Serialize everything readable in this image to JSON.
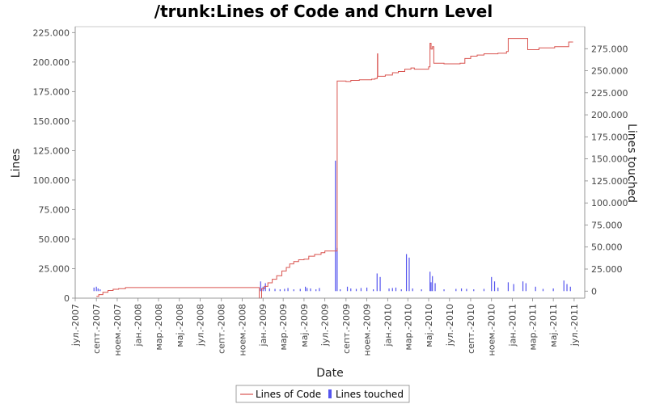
{
  "chart_data": {
    "type": "line",
    "title": "/trunk:Lines of Code and Churn Level",
    "xlabel": "Date",
    "ylabel": "Lines",
    "y2label": "Lines touched",
    "x_ticks": [
      "јул.-2007",
      "септ.-2007",
      "ноем.-2007",
      "јан.-2008",
      "мар.-2008",
      "мај.-2008",
      "јул.-2008",
      "септ.-2008",
      "ноем.-2008",
      "јан.-2009",
      "мар.-2009",
      "мај.-2009",
      "јул.-2009",
      "септ.-2009",
      "ноем.-2009",
      "јан.-2010",
      "мар.-2010",
      "мај.-2010",
      "јул.-2010",
      "септ.-2010",
      "ноем.-2010",
      "јан.-2011",
      "мар.-2011",
      "мај.-2011",
      "јул.-2011"
    ],
    "y_ticks": [
      "0",
      "25.000",
      "50.000",
      "75.000",
      "100.000",
      "125.000",
      "150.000",
      "175.000",
      "200.000",
      "225.000"
    ],
    "y2_ticks": [
      "0",
      "25.000",
      "50.000",
      "75.000",
      "100.000",
      "125.000",
      "150.000",
      "175.000",
      "200.000",
      "225.000",
      "250.000",
      "275.000"
    ],
    "ylim": [
      0,
      230000
    ],
    "y2lim": [
      -8000,
      300000
    ],
    "xlim": [
      "2007-07-01",
      "2011-08-01"
    ],
    "grid": false,
    "legend_position": "bottom",
    "colors": {
      "loc": "#d9534f",
      "churn": "#5555ee",
      "axis": "#888888"
    },
    "series": [
      {
        "name": "Lines of Code",
        "axis": "left",
        "style": "step",
        "points": [
          [
            "2007-09-01",
            1500
          ],
          [
            "2007-09-08",
            3000
          ],
          [
            "2007-09-20",
            5000
          ],
          [
            "2007-10-05",
            6500
          ],
          [
            "2007-10-20",
            7500
          ],
          [
            "2007-11-05",
            8000
          ],
          [
            "2007-11-25",
            9000
          ],
          [
            "2008-12-20",
            9000
          ],
          [
            "2008-12-21",
            0
          ],
          [
            "2008-12-28",
            8000
          ],
          [
            "2009-01-05",
            10000
          ],
          [
            "2009-01-15",
            13000
          ],
          [
            "2009-01-28",
            16000
          ],
          [
            "2009-02-10",
            19000
          ],
          [
            "2009-02-25",
            23000
          ],
          [
            "2009-03-10",
            26000
          ],
          [
            "2009-03-20",
            29000
          ],
          [
            "2009-04-01",
            31000
          ],
          [
            "2009-04-15",
            32500
          ],
          [
            "2009-05-01",
            33000
          ],
          [
            "2009-05-15",
            35500
          ],
          [
            "2009-06-01",
            37000
          ],
          [
            "2009-06-20",
            38500
          ],
          [
            "2009-07-01",
            40000
          ],
          [
            "2009-08-05",
            40000
          ],
          [
            "2009-08-06",
            184000
          ],
          [
            "2009-09-01",
            183500
          ],
          [
            "2009-09-15",
            184500
          ],
          [
            "2009-10-10",
            185000
          ],
          [
            "2009-11-15",
            185500
          ],
          [
            "2009-11-25",
            186000
          ],
          [
            "2009-12-01",
            187000
          ],
          [
            "2009-12-02",
            207000
          ],
          [
            "2009-12-03",
            188000
          ],
          [
            "2009-12-25",
            189000
          ],
          [
            "2010-01-15",
            191000
          ],
          [
            "2010-02-01",
            192000
          ],
          [
            "2010-02-20",
            194000
          ],
          [
            "2010-03-10",
            195000
          ],
          [
            "2010-03-20",
            194000
          ],
          [
            "2010-05-01",
            196000
          ],
          [
            "2010-05-05",
            216000
          ],
          [
            "2010-05-08",
            211000
          ],
          [
            "2010-05-12",
            213000
          ],
          [
            "2010-05-16",
            199000
          ],
          [
            "2010-06-15",
            198500
          ],
          [
            "2010-08-01",
            199000
          ],
          [
            "2010-08-15",
            203000
          ],
          [
            "2010-09-01",
            205000
          ],
          [
            "2010-09-20",
            206000
          ],
          [
            "2010-10-10",
            207000
          ],
          [
            "2010-11-20",
            207500
          ],
          [
            "2010-12-15",
            209000
          ],
          [
            "2010-12-20",
            220000
          ],
          [
            "2011-02-15",
            210500
          ],
          [
            "2011-03-20",
            212000
          ],
          [
            "2011-05-05",
            213000
          ],
          [
            "2011-06-15",
            217000
          ],
          [
            "2011-06-28",
            217000
          ]
        ]
      },
      {
        "name": "Lines touched",
        "axis": "right",
        "style": "bar",
        "points": [
          [
            "2007-08-25",
            4000
          ],
          [
            "2007-09-01",
            5000
          ],
          [
            "2007-09-06",
            3000
          ],
          [
            "2007-09-12",
            2000
          ],
          [
            "2008-12-25",
            11000
          ],
          [
            "2009-01-01",
            5000
          ],
          [
            "2009-01-08",
            9000
          ],
          [
            "2009-01-20",
            3000
          ],
          [
            "2009-02-05",
            2500
          ],
          [
            "2009-02-20",
            2000
          ],
          [
            "2009-03-05",
            2500
          ],
          [
            "2009-03-15",
            3500
          ],
          [
            "2009-04-01",
            2000
          ],
          [
            "2009-04-20",
            2500
          ],
          [
            "2009-05-05",
            5000
          ],
          [
            "2009-05-10",
            3500
          ],
          [
            "2009-05-20",
            3000
          ],
          [
            "2009-06-05",
            2000
          ],
          [
            "2009-06-15",
            3500
          ],
          [
            "2009-08-01",
            148000
          ],
          [
            "2009-08-06",
            49000
          ],
          [
            "2009-08-15",
            2000
          ],
          [
            "2009-09-05",
            5000
          ],
          [
            "2009-09-15",
            3000
          ],
          [
            "2009-10-01",
            2500
          ],
          [
            "2009-10-15",
            3500
          ],
          [
            "2009-11-01",
            4000
          ],
          [
            "2009-11-20",
            2000
          ],
          [
            "2009-12-01",
            20000
          ],
          [
            "2009-12-10",
            16000
          ],
          [
            "2010-01-05",
            3000
          ],
          [
            "2010-01-15",
            3500
          ],
          [
            "2010-01-25",
            4000
          ],
          [
            "2010-02-10",
            2000
          ],
          [
            "2010-02-25",
            42000
          ],
          [
            "2010-03-05",
            38000
          ],
          [
            "2010-03-15",
            3000
          ],
          [
            "2010-04-10",
            2000
          ],
          [
            "2010-05-05",
            22000
          ],
          [
            "2010-05-08",
            10000
          ],
          [
            "2010-05-12",
            17000
          ],
          [
            "2010-05-20",
            9000
          ],
          [
            "2010-06-15",
            2000
          ],
          [
            "2010-07-20",
            2500
          ],
          [
            "2010-08-05",
            3000
          ],
          [
            "2010-08-20",
            2500
          ],
          [
            "2010-09-10",
            2000
          ],
          [
            "2010-10-10",
            2500
          ],
          [
            "2010-11-01",
            16000
          ],
          [
            "2010-11-10",
            11000
          ],
          [
            "2010-11-20",
            4000
          ],
          [
            "2010-12-20",
            10000
          ],
          [
            "2011-01-05",
            8000
          ],
          [
            "2011-02-01",
            11000
          ],
          [
            "2011-02-10",
            9000
          ],
          [
            "2011-03-10",
            5000
          ],
          [
            "2011-04-01",
            2500
          ],
          [
            "2011-05-01",
            3000
          ],
          [
            "2011-06-01",
            12000
          ],
          [
            "2011-06-10",
            8000
          ],
          [
            "2011-06-20",
            5000
          ]
        ]
      }
    ]
  }
}
